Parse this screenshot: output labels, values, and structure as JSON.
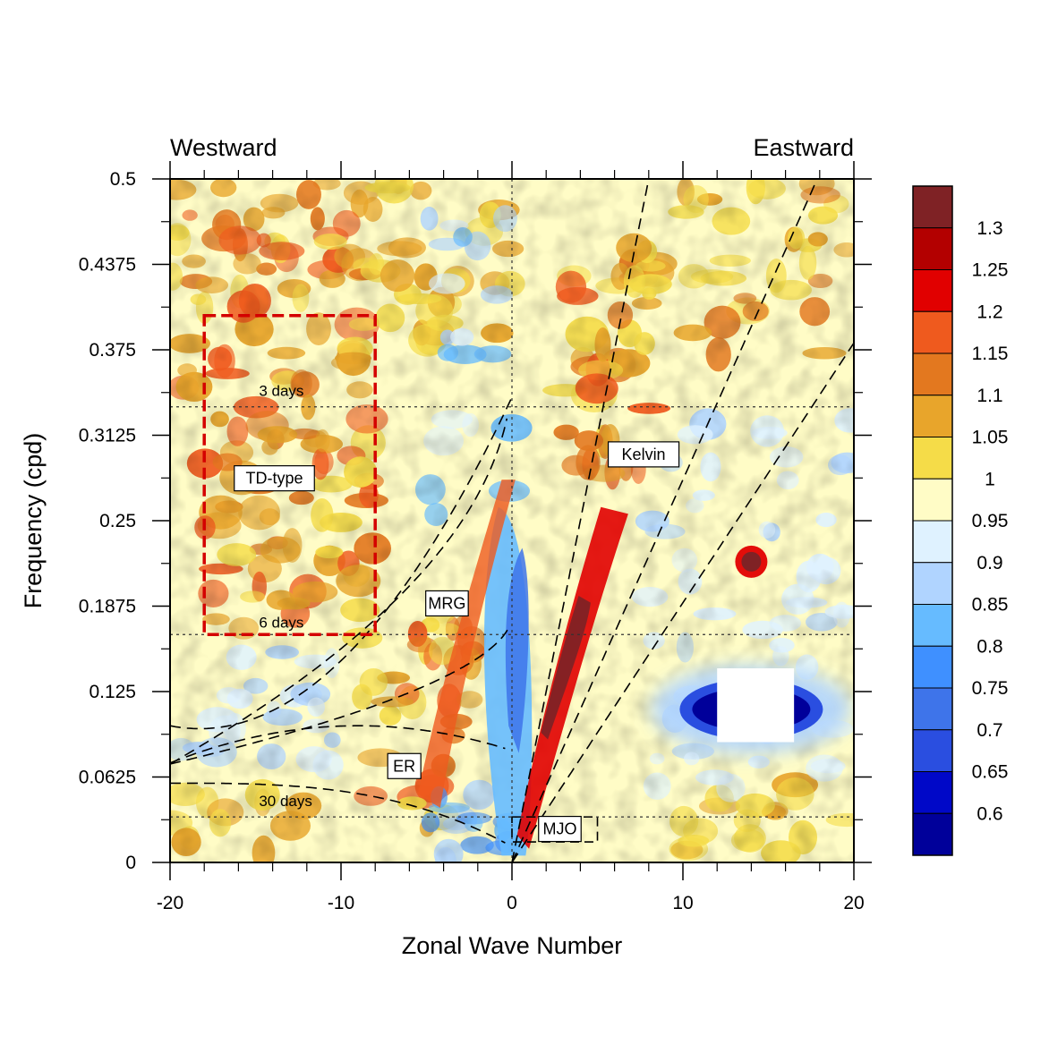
{
  "chart_data": {
    "type": "heatmap",
    "title": "",
    "xlabel": "Zonal Wave Number",
    "ylabel": "Frequency (cpd)",
    "xlim": [
      -20,
      20
    ],
    "ylim": [
      0,
      0.5
    ],
    "x_ticks": [
      -20,
      -10,
      0,
      10,
      20
    ],
    "x_tick_labels": [
      "-20",
      "-10",
      "0",
      "10",
      "20"
    ],
    "y_ticks": [
      0,
      0.0625,
      0.125,
      0.1875,
      0.25,
      0.3125,
      0.375,
      0.4375,
      0.5
    ],
    "y_tick_labels": [
      "0",
      "0.0625",
      "0.125",
      "0.1875",
      "0.25",
      "0.3125",
      "0.375",
      "0.4375",
      "0.5"
    ],
    "direction_labels": {
      "left": "Westward",
      "right": "Eastward"
    },
    "colorbar": {
      "levels": [
        "1.3",
        "1.25",
        "1.2",
        "1.15",
        "1.1",
        "1.05",
        "1",
        "0.95",
        "0.9",
        "0.85",
        "0.8",
        "0.75",
        "0.7",
        "0.65",
        "0.6"
      ],
      "colors": [
        "#7f2225",
        "#b30000",
        "#e10000",
        "#ef5a1e",
        "#e3781f",
        "#e8a52b",
        "#f5dc48",
        "#fffcc6",
        "#dff2ff",
        "#b0d4ff",
        "#66bbff",
        "#3f90ff",
        "#3e74ea",
        "#2a4ee0",
        "#0008c8",
        "#00009a"
      ]
    },
    "period_lines": [
      {
        "label": "3 days",
        "frequency": 0.3333
      },
      {
        "label": "6 days",
        "frequency": 0.1667
      },
      {
        "label": "30 days",
        "frequency": 0.0333
      }
    ],
    "wave_labels": [
      {
        "label": "Kelvin",
        "x": 7.7,
        "y": 0.2985
      },
      {
        "label": "MRG",
        "x": -3.8,
        "y": 0.1895
      },
      {
        "label": "ER",
        "x": -6.3,
        "y": 0.0705
      },
      {
        "label": "MJO",
        "x": 2.8,
        "y": 0.0245
      },
      {
        "label": "TD-type",
        "x": -13.9,
        "y": 0.281
      }
    ],
    "td_box": {
      "x": [
        -18,
        -8
      ],
      "y": [
        0.1667,
        0.4
      ]
    },
    "features": [
      {
        "x": 3.5,
        "y": 0.15,
        "value": 1.3
      },
      {
        "x": 5.8,
        "y": 0.22,
        "value": 1.3
      },
      {
        "x": 14,
        "y": 0.22,
        "value": 1.3
      },
      {
        "x": 14,
        "y": 0.115,
        "value": 0.6
      },
      {
        "x": 1,
        "y": 0.18,
        "value": 0.75
      }
    ]
  }
}
